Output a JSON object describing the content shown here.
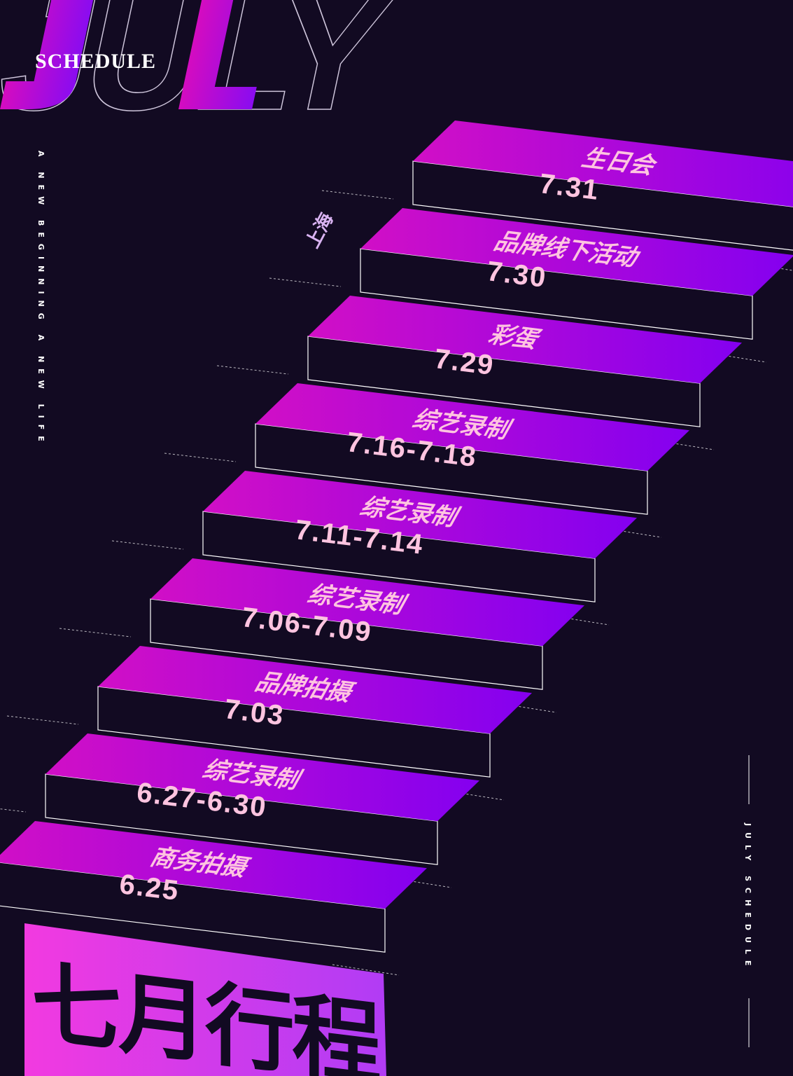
{
  "header": {
    "big_word": "JULY",
    "subtitle": "SCHEDULE"
  },
  "side_text_left": "A NEW BEGINNING A NEW LIFE",
  "side_text_right": "JULY SCHEDULE",
  "location_tag": "上海",
  "main_title": "七月行程",
  "colors": {
    "background": "#120a22",
    "magenta": "#d10fc6",
    "violet": "#8b00ee",
    "label_pink": "#ffc4e0",
    "outline": "#ffffff"
  },
  "schedule": [
    {
      "event": "生日会",
      "date": "7.31"
    },
    {
      "event": "品牌线下活动",
      "date": "7.30"
    },
    {
      "event": "彩蛋",
      "date": "7.29"
    },
    {
      "event": "综艺录制",
      "date": "7.16-7.18"
    },
    {
      "event": "综艺录制",
      "date": "7.11-7.14"
    },
    {
      "event": "综艺录制",
      "date": "7.06-7.09"
    },
    {
      "event": "品牌拍摄",
      "date": "7.03"
    },
    {
      "event": "综艺录制",
      "date": "6.27-6.30"
    },
    {
      "event": "商务拍摄",
      "date": "6.25"
    }
  ]
}
